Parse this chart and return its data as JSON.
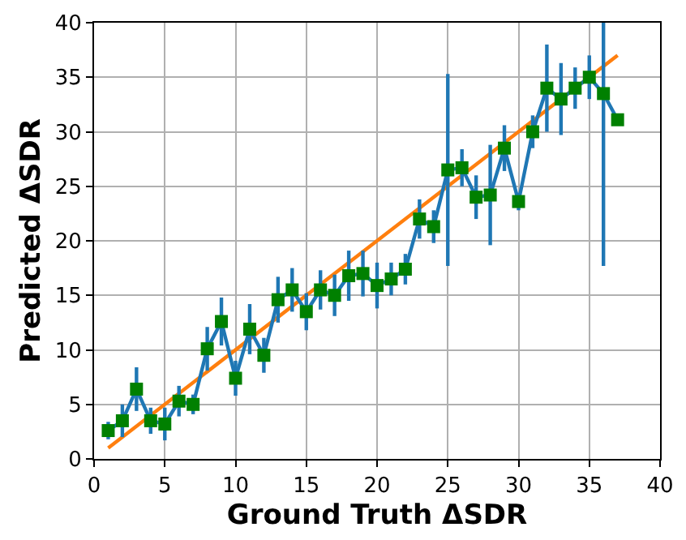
{
  "chart_data": {
    "type": "line",
    "xlabel": "Ground Truth ΔSDR",
    "ylabel": "Predicted ΔSDR",
    "xlim": [
      0,
      40
    ],
    "ylim": [
      0,
      40
    ],
    "xticks": [
      0,
      5,
      10,
      15,
      20,
      25,
      30,
      35,
      40
    ],
    "yticks": [
      0,
      5,
      10,
      15,
      20,
      25,
      30,
      35,
      40
    ],
    "grid": true,
    "legend": false,
    "series": [
      {
        "color": "#1f77b4",
        "marker": "square",
        "colors": [
          "#008000",
          "#008000",
          "#008000",
          "#008000",
          "#008000",
          "#008000",
          "#008000",
          "#008000",
          "#008000",
          "#008000",
          "#008000",
          "#008000",
          "#008000",
          "#008000",
          "#008000",
          "#008000",
          "#008000",
          "#008000",
          "#008000",
          "#008000",
          "#008000",
          "#008000",
          "#008000",
          "#008000",
          "#008000",
          "#008000",
          "#008000",
          "#008000",
          "#008000",
          "#008000",
          "#008000",
          "#008000",
          "#008000",
          "#008000",
          "#008000",
          "#008000",
          "#008000"
        ],
        "x": [
          1,
          2,
          3,
          4,
          5,
          6,
          7,
          8,
          9,
          10,
          11,
          12,
          13,
          14,
          15,
          16,
          17,
          18,
          19,
          20,
          21,
          22,
          23,
          24,
          25,
          26,
          27,
          28,
          29,
          30,
          31,
          32,
          33,
          34,
          35,
          36,
          37
        ],
        "values": [
          2.6,
          3.5,
          6.4,
          3.5,
          3.2,
          5.3,
          5.0,
          10.1,
          12.6,
          7.4,
          11.9,
          9.5,
          14.6,
          15.5,
          13.5,
          15.5,
          15.0,
          16.8,
          17.0,
          15.9,
          16.5,
          17.4,
          22.0,
          21.3,
          26.5,
          26.7,
          24.0,
          24.2,
          28.5,
          23.6,
          30.0,
          34.0,
          33.0,
          34.0,
          35.0,
          33.5,
          31.1
        ],
        "errors": [
          0.8,
          1.5,
          2.0,
          1.2,
          1.5,
          1.4,
          0.9,
          2.0,
          2.2,
          1.6,
          2.3,
          1.6,
          2.1,
          2.0,
          1.7,
          1.8,
          1.9,
          2.3,
          2.1,
          2.1,
          1.5,
          1.4,
          1.8,
          1.5,
          8.8,
          1.7,
          2.0,
          4.6,
          2.1,
          0.8,
          1.5,
          4.0,
          3.3,
          1.9,
          2.0,
          [
            17.7,
            40
          ],
          null
        ]
      },
      {
        "color": "#ff7f0e",
        "marker": "none",
        "x": [
          1,
          37
        ],
        "values": [
          1,
          37
        ]
      }
    ]
  }
}
